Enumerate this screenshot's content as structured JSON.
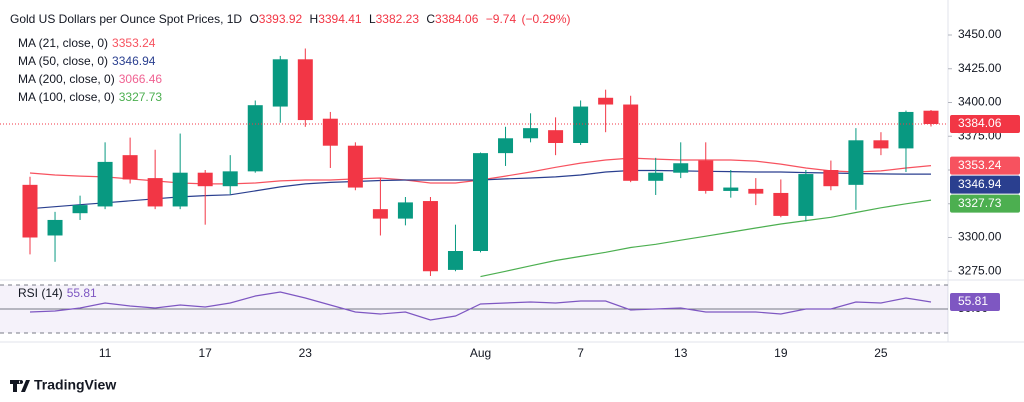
{
  "chart_data": {
    "type": "candlestick",
    "title": "Gold US Dollars per Ounce Spot Prices, 1D",
    "ohlc_labels": [
      "O",
      "H",
      "L",
      "C"
    ],
    "change": {
      "value": -9.74,
      "label": "−9.74"
    },
    "change_pct": {
      "value": -0.29,
      "label": "(−0.29%)"
    },
    "categories": [
      null,
      null,
      null,
      "11",
      null,
      null,
      null,
      "17",
      null,
      null,
      null,
      "23",
      null,
      null,
      null,
      null,
      null,
      null,
      "Aug",
      null,
      null,
      null,
      "7",
      null,
      null,
      null,
      "13",
      null,
      null,
      null,
      "19",
      null,
      null,
      null,
      "25",
      null,
      null
    ],
    "open": [
      3339,
      3301.5,
      3318,
      3323,
      3361,
      3344,
      3323,
      3348,
      3338,
      3349,
      3397,
      3432,
      3388,
      3368,
      3321,
      3314,
      3327,
      3276,
      3290,
      3362.5,
      3373.5,
      3379.5,
      3370,
      3403.5,
      3398.5,
      3342,
      3348,
      3357,
      3334.5,
      3336,
      3333,
      3316,
      3350,
      3339,
      3372,
      3366,
      3393.92
    ],
    "high": [
      3345,
      3319,
      3331,
      3370.5,
      3374,
      3365,
      3377,
      3350,
      3361,
      3401.5,
      3434.5,
      3440,
      3393,
      3370.5,
      3344,
      3330,
      3330,
      3309.5,
      3363,
      3382,
      3392,
      3389,
      3401.5,
      3409.5,
      3405,
      3359,
      3370.5,
      3370.5,
      3350,
      3344,
      3343,
      3350,
      3357,
      3381,
      3378,
      3394,
      3394.41
    ],
    "low": [
      3287.5,
      3282,
      3313,
      3321,
      3340,
      3321,
      3321,
      3309.5,
      3332,
      3348,
      3385,
      3382,
      3351.5,
      3335,
      3301.5,
      3309,
      3271.5,
      3275,
      3289,
      3353,
      3370.5,
      3361,
      3368.5,
      3378,
      3341,
      3331.5,
      3344,
      3332.5,
      3329.5,
      3324,
      3315,
      3312,
      3335,
      3320.5,
      3361,
      3348.5,
      3382.23
    ],
    "close": [
      3300,
      3313,
      3324,
      3356,
      3343,
      3323,
      3348,
      3338,
      3349,
      3398,
      3432,
      3387,
      3368,
      3337,
      3314,
      3326,
      3275,
      3290,
      3362.5,
      3373.5,
      3381,
      3370,
      3397,
      3398.5,
      3342,
      3348,
      3355,
      3334.5,
      3337,
      3332.5,
      3316,
      3347,
      3338,
      3372,
      3366,
      3393,
      3384.06
    ],
    "up_color": "#089981",
    "down_color": "#f23645",
    "ylim": [
      3270,
      3470
    ],
    "yticks": [
      {
        "value": 3275,
        "label": "3275.00"
      },
      {
        "value": 3300,
        "label": "3300.00"
      },
      {
        "value": 3325,
        "label": "3325.00"
      },
      {
        "value": 3350,
        "label": "3350.00"
      },
      {
        "value": 3375,
        "label": "3375.00"
      },
      {
        "value": 3400,
        "label": "3400.00"
      },
      {
        "value": 3425,
        "label": "3425.00"
      },
      {
        "value": 3450,
        "label": "3450.00"
      }
    ],
    "ma": [
      {
        "name": "MA (21, close, 0)",
        "color": "#f7525f",
        "last_value": 3353.24,
        "values": [
          3347.8,
          3346.3,
          3345.5,
          3344.9,
          3343.4,
          3341.9,
          3340.4,
          3339.7,
          3339.7,
          3340.4,
          3341.9,
          3342.6,
          3342.6,
          3343.4,
          3344.1,
          3342.6,
          3340.4,
          3340.4,
          3342.6,
          3345.5,
          3348.5,
          3352,
          3355.1,
          3357.4,
          3358.8,
          3358.1,
          3357.4,
          3357.4,
          3357.4,
          3356.6,
          3354.4,
          3351.5,
          3349.3,
          3348.5,
          3349.3,
          3351.5,
          3353.24
        ]
      },
      {
        "name": "MA (50, close, 0)",
        "color": "#2a3f8f",
        "last_value": 3346.94,
        "values": [
          3321.3,
          3322.8,
          3324.3,
          3325.7,
          3327.2,
          3328.7,
          3330.1,
          3331,
          3331.6,
          3334.5,
          3337.5,
          3339.7,
          3340.8,
          3341.5,
          3342.2,
          3342.6,
          3342.6,
          3342.6,
          3342.6,
          3343.4,
          3344.1,
          3344.9,
          3346.3,
          3348.5,
          3349.6,
          3349.6,
          3349.3,
          3349,
          3348.8,
          3348.5,
          3348.5,
          3348.1,
          3347.8,
          3347.4,
          3347.1,
          3347,
          3346.94
        ]
      },
      {
        "name": "MA (200, close, 0)",
        "color": "#f06292",
        "last_value": 3066.46,
        "values": [
          null,
          null,
          null,
          null,
          null,
          null,
          null,
          null,
          null,
          null,
          null,
          null,
          null,
          null,
          null,
          null,
          null,
          null,
          null,
          null,
          null,
          null,
          null,
          null,
          null,
          null,
          null,
          null,
          null,
          null,
          null,
          null,
          null,
          null,
          null,
          null,
          null
        ]
      },
      {
        "name": "MA (100, close, 0)",
        "color": "#4caf50",
        "last_value": 3327.73,
        "values": [
          null,
          null,
          null,
          null,
          null,
          null,
          null,
          null,
          null,
          null,
          null,
          null,
          null,
          null,
          null,
          null,
          null,
          null,
          3271,
          3275,
          3279,
          3283,
          3286,
          3289,
          3292.6,
          3295,
          3298,
          3301,
          3304,
          3307,
          3310,
          3312.5,
          3315,
          3318.5,
          3322,
          3325,
          3327.73
        ]
      }
    ],
    "rsi": {
      "name": "RSI (14)",
      "color": "#7e57c2",
      "last_value": 55.81,
      "ylim": [
        22.5,
        72.5
      ],
      "yticks": [
        {
          "value": 50,
          "label": "50.00"
        }
      ],
      "band_lines": [
        70,
        30
      ],
      "values": [
        47.5,
        48.3,
        50.8,
        55,
        52.5,
        50.8,
        53.3,
        51.7,
        55,
        60.8,
        64.2,
        59.2,
        53.3,
        47.5,
        45.8,
        47.5,
        40.8,
        44.2,
        54.2,
        55,
        55.8,
        55,
        56.7,
        56.7,
        49.2,
        50,
        50.8,
        47.5,
        47.5,
        47.5,
        45.8,
        50,
        50,
        55.8,
        55,
        59.2,
        55.81
      ]
    },
    "brand": "TradingView"
  }
}
